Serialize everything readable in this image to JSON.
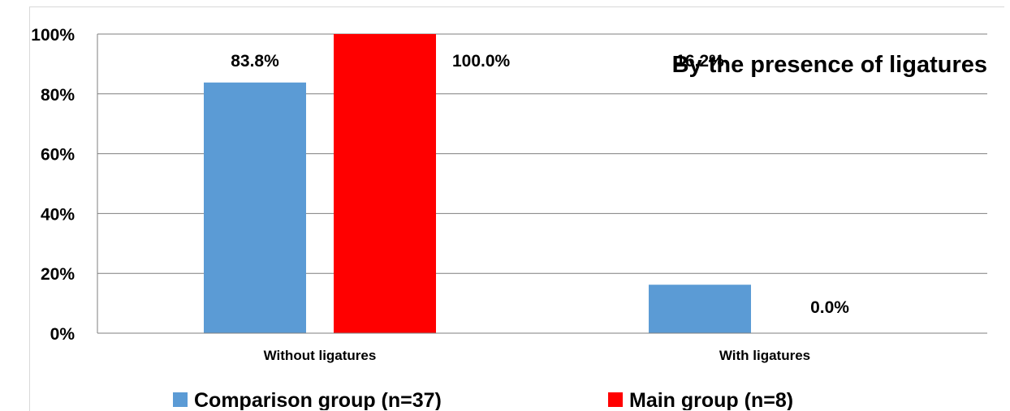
{
  "chart_data": {
    "type": "bar",
    "title": "By the presence of ligatures",
    "categories": [
      "Without ligatures",
      "With ligatures"
    ],
    "series": [
      {
        "name": "Comparison group (n=37)",
        "color": "#5b9bd5",
        "values": [
          83.8,
          16.2
        ],
        "labels": [
          "83.8%",
          "16.2%"
        ]
      },
      {
        "name": "Main group  (n=8)",
        "color": "#ff0000",
        "values": [
          100.0,
          0.0
        ],
        "labels": [
          "100.0%",
          "0.0%"
        ]
      }
    ],
    "y_ticks": [
      "0%",
      "20%",
      "40%",
      "60%",
      "80%",
      "100%"
    ],
    "ylim": [
      0,
      100
    ],
    "grid": true,
    "legend_position": "bottom"
  }
}
